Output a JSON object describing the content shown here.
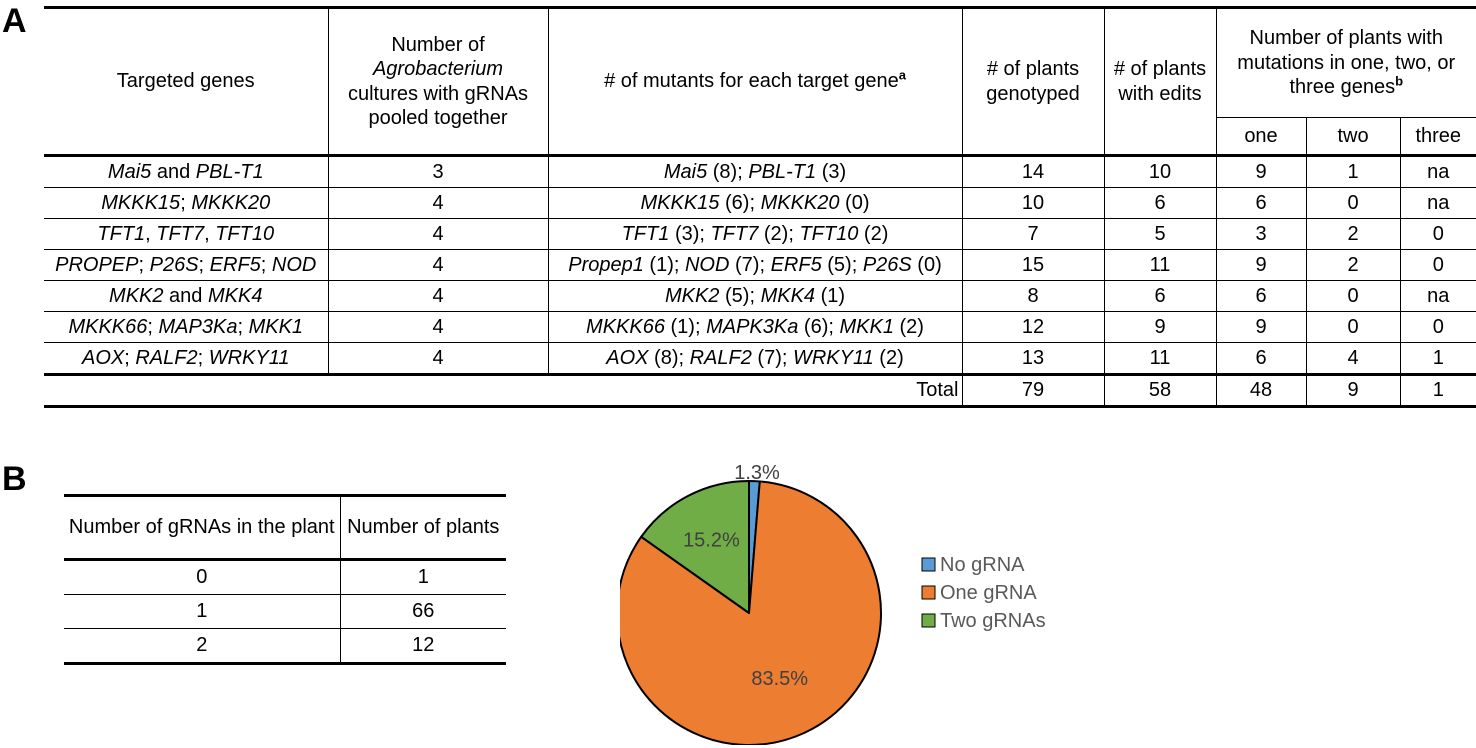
{
  "panel_a": {
    "label": "A",
    "header": {
      "targeted_genes": "Targeted genes",
      "cultures_line1": "Number of",
      "cultures_italic": "Agrobacterium",
      "cultures_line3": "cultures with gRNAs",
      "cultures_line4": "pooled together",
      "mutants": "# of mutants for each target gene",
      "mutants_sup": "a",
      "genotyped": "# of plants genotyped",
      "edits": "# of plants with edits",
      "mutations_group": "Number of plants with mutations in one, two, or three genes",
      "mutations_sup": "b",
      "one": "one",
      "two": "two",
      "three": "three"
    },
    "rows": [
      {
        "genes": [
          {
            "t": "Mai5",
            "i": true
          },
          {
            "t": " and ",
            "i": false
          },
          {
            "t": "PBL-T1",
            "i": true
          }
        ],
        "cultures": "3",
        "mutants": [
          {
            "t": "Mai5",
            "i": true
          },
          {
            "t": " (8); ",
            "i": false
          },
          {
            "t": "PBL-T1",
            "i": true
          },
          {
            "t": " (3)",
            "i": false
          }
        ],
        "genotyped": "14",
        "edits": "10",
        "one": "9",
        "two": "1",
        "three": "na"
      },
      {
        "genes": [
          {
            "t": "MKKK15",
            "i": true
          },
          {
            "t": "; ",
            "i": false
          },
          {
            "t": "MKKK20",
            "i": true
          }
        ],
        "cultures": "4",
        "mutants": [
          {
            "t": "MKKK15",
            "i": true
          },
          {
            "t": " (6); ",
            "i": false
          },
          {
            "t": "MKKK20",
            "i": true
          },
          {
            "t": " (0)",
            "i": false
          }
        ],
        "genotyped": "10",
        "edits": "6",
        "one": "6",
        "two": "0",
        "three": "na"
      },
      {
        "genes": [
          {
            "t": "TFT1",
            "i": true
          },
          {
            "t": ", ",
            "i": false
          },
          {
            "t": "TFT7",
            "i": true
          },
          {
            "t": ", ",
            "i": false
          },
          {
            "t": "TFT10",
            "i": true
          }
        ],
        "cultures": "4",
        "mutants": [
          {
            "t": "TFT1",
            "i": true
          },
          {
            "t": " (3); ",
            "i": false
          },
          {
            "t": "TFT7",
            "i": true
          },
          {
            "t": " (2); ",
            "i": false
          },
          {
            "t": "TFT10",
            "i": true
          },
          {
            "t": " (2)",
            "i": false
          }
        ],
        "genotyped": "7",
        "edits": "5",
        "one": "3",
        "two": "2",
        "three": "0"
      },
      {
        "genes": [
          {
            "t": "PROPEP",
            "i": true
          },
          {
            "t": "; ",
            "i": false
          },
          {
            "t": "P26S",
            "i": true
          },
          {
            "t": "; ",
            "i": false
          },
          {
            "t": "ERF5",
            "i": true
          },
          {
            "t": "; ",
            "i": false
          },
          {
            "t": "NOD",
            "i": true
          }
        ],
        "cultures": "4",
        "mutants": [
          {
            "t": "Propep1",
            "i": true
          },
          {
            "t": " (1); ",
            "i": false
          },
          {
            "t": "NOD",
            "i": true
          },
          {
            "t": " (7); ",
            "i": false
          },
          {
            "t": "ERF5",
            "i": true
          },
          {
            "t": " (5); ",
            "i": false
          },
          {
            "t": "P26S",
            "i": true
          },
          {
            "t": " (0)",
            "i": false
          }
        ],
        "genotyped": "15",
        "edits": "11",
        "one": "9",
        "two": "2",
        "three": "0"
      },
      {
        "genes": [
          {
            "t": "MKK2",
            "i": true
          },
          {
            "t": " and ",
            "i": false
          },
          {
            "t": "MKK4",
            "i": true
          }
        ],
        "cultures": "4",
        "mutants": [
          {
            "t": "MKK2",
            "i": true
          },
          {
            "t": " (5); ",
            "i": false
          },
          {
            "t": "MKK4",
            "i": true
          },
          {
            "t": " (1)",
            "i": false
          }
        ],
        "genotyped": "8",
        "edits": "6",
        "one": "6",
        "two": "0",
        "three": "na"
      },
      {
        "genes": [
          {
            "t": "MKKK66",
            "i": true
          },
          {
            "t": "; ",
            "i": false
          },
          {
            "t": "MAP3Ka",
            "i": true
          },
          {
            "t": "; ",
            "i": false
          },
          {
            "t": "MKK1",
            "i": true
          }
        ],
        "cultures": "4",
        "mutants": [
          {
            "t": "MKKK66",
            "i": true
          },
          {
            "t": " (1); ",
            "i": false
          },
          {
            "t": "MAPK3Ka",
            "i": true
          },
          {
            "t": " (6); ",
            "i": false
          },
          {
            "t": "MKK1",
            "i": true
          },
          {
            "t": " (2)",
            "i": false
          }
        ],
        "genotyped": "12",
        "edits": "9",
        "one": "9",
        "two": "0",
        "three": "0"
      },
      {
        "genes": [
          {
            "t": "AOX",
            "i": true
          },
          {
            "t": "; ",
            "i": false
          },
          {
            "t": "RALF2",
            "i": true
          },
          {
            "t": "; ",
            "i": false
          },
          {
            "t": "WRKY11",
            "i": true
          }
        ],
        "cultures": "4",
        "mutants": [
          {
            "t": "AOX",
            "i": true
          },
          {
            "t": " (8); ",
            "i": false
          },
          {
            "t": "RALF2",
            "i": true
          },
          {
            "t": " (7); ",
            "i": false
          },
          {
            "t": "WRKY11",
            "i": true
          },
          {
            "t": " (2)",
            "i": false
          }
        ],
        "genotyped": "13",
        "edits": "11",
        "one": "6",
        "two": "4",
        "three": "1"
      }
    ],
    "total": {
      "label": "Total",
      "genotyped": "79",
      "edits": "58",
      "one": "48",
      "two": "9",
      "three": "1"
    }
  },
  "panel_b": {
    "label": "B",
    "table": {
      "header_gRNAs": "Number of gRNAs in the plant",
      "header_plants": "Number of plants",
      "rows": [
        {
          "gRNAs": "0",
          "plants": "1"
        },
        {
          "gRNAs": "1",
          "plants": "66"
        },
        {
          "gRNAs": "2",
          "plants": "12"
        }
      ]
    },
    "chart_data": {
      "type": "pie",
      "title": "",
      "slices": [
        {
          "name": "No gRNA",
          "value": 1.3,
          "label": "1.3%",
          "color": "#5b9bd5"
        },
        {
          "name": "One gRNA",
          "value": 83.5,
          "label": "83.5%",
          "color": "#ed7d31"
        },
        {
          "name": "Two gRNAs",
          "value": 15.2,
          "label": "15.2%",
          "color": "#70ad47"
        }
      ],
      "legend_placement": "right",
      "start_angle": "12 o'clock, clockwise"
    }
  }
}
